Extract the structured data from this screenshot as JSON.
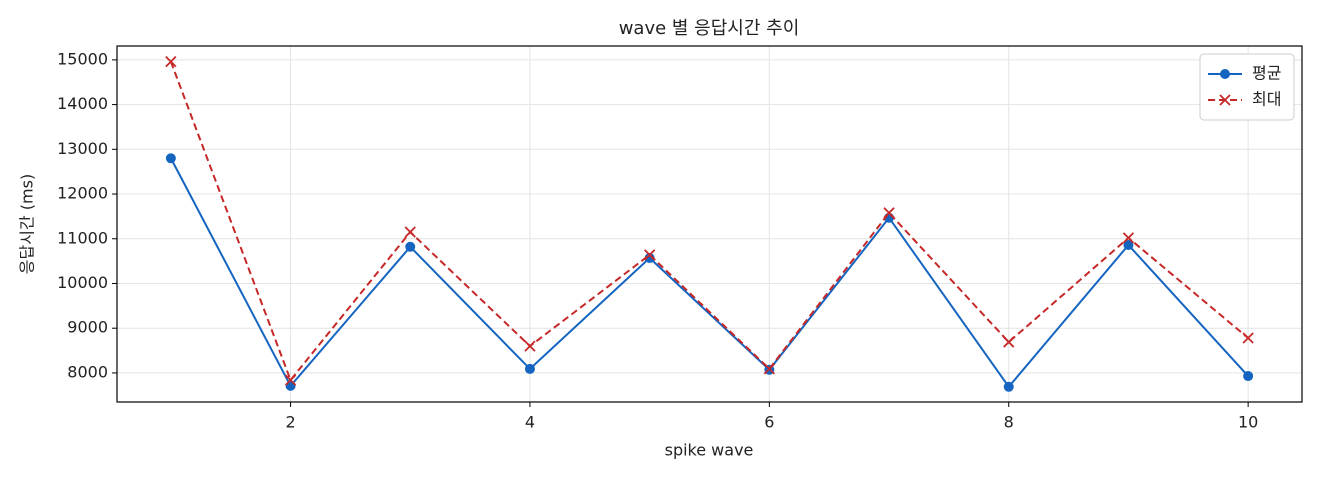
{
  "chart_data": {
    "type": "line",
    "title": "wave 별 응답시간 추이",
    "x_label": "spike wave",
    "y_label": "응답시간 (ms)",
    "x": [
      1,
      2,
      3,
      4,
      5,
      6,
      7,
      8,
      9,
      10
    ],
    "series": [
      {
        "name": "평균",
        "color": "#1565c0",
        "marker": "o",
        "dash": "solid",
        "values": [
          12800,
          7710,
          10820,
          8090,
          10570,
          8070,
          11470,
          7690,
          10860,
          7930
        ]
      },
      {
        "name": "최대",
        "color": "#c62828",
        "marker": "x",
        "dash": "dashed",
        "values": [
          14960,
          7840,
          11150,
          8600,
          10640,
          8090,
          11580,
          8690,
          11020,
          8780
        ]
      }
    ],
    "xlim": [
      0.55,
      10.45
    ],
    "ylim": [
      7350,
      15310
    ],
    "xticks": [
      2,
      4,
      6,
      8,
      10
    ],
    "yticks": [
      8000,
      9000,
      10000,
      11000,
      12000,
      13000,
      14000,
      15000
    ],
    "grid": true,
    "legend": "upper right"
  }
}
